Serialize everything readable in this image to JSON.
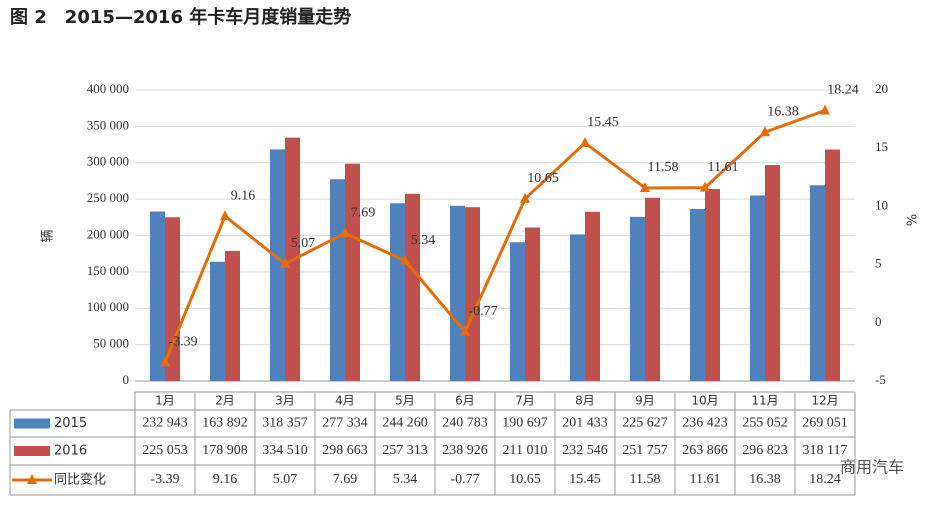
{
  "chart_data": {
    "type": "bar",
    "title": "图 2　2015—2016 年卡车月度销量走势",
    "y_label": "辆",
    "y2_label": "%",
    "categories": [
      "1月",
      "2月",
      "3月",
      "4月",
      "5月",
      "6月",
      "7月",
      "8月",
      "9月",
      "10月",
      "11月",
      "12月"
    ],
    "series": [
      {
        "name": "2015",
        "color": "#4f81bd",
        "values": [
          232943,
          163892,
          318357,
          277334,
          244260,
          240783,
          190697,
          201433,
          225627,
          236423,
          255052,
          269051
        ],
        "value_labels": [
          "232 943",
          "163 892",
          "318 357",
          "277 334",
          "244 260",
          "240 783",
          "190 697",
          "201 433",
          "225 627",
          "236 423",
          "255 052",
          "269 051"
        ]
      },
      {
        "name": "2016",
        "color": "#c0504d",
        "values": [
          225053,
          178908,
          334510,
          298663,
          257313,
          238926,
          211010,
          232546,
          251757,
          263866,
          296823,
          318117
        ],
        "value_labels": [
          "225 053",
          "178 908",
          "334 510",
          "298 663",
          "257 313",
          "238 926",
          "211 010",
          "232 546",
          "251 757",
          "263 866",
          "296 823",
          "318 117"
        ]
      },
      {
        "name": "同比变化",
        "type": "line",
        "axis": "y2",
        "color": "#e46c0a",
        "values": [
          -3.39,
          9.16,
          5.07,
          7.69,
          5.34,
          -0.77,
          10.65,
          15.45,
          11.58,
          11.61,
          16.38,
          18.24
        ]
      }
    ],
    "ylim": [
      0,
      400000
    ],
    "yticks": [
      {
        "value": 0,
        "label": "0"
      },
      {
        "value": 50000,
        "label": "50 000"
      },
      {
        "value": 100000,
        "label": "100 000"
      },
      {
        "value": 150000,
        "label": "150 000"
      },
      {
        "value": 200000,
        "label": "200 000"
      },
      {
        "value": 250000,
        "label": "250 000"
      },
      {
        "value": 300000,
        "label": "300 000"
      },
      {
        "value": 350000,
        "label": "350 000"
      },
      {
        "value": 400000,
        "label": "400 000"
      }
    ],
    "y2lim": [
      -5,
      20
    ],
    "y2ticks": [
      -5,
      0,
      5,
      10,
      15,
      20
    ],
    "grid": true
  },
  "watermark": "商用汽车"
}
